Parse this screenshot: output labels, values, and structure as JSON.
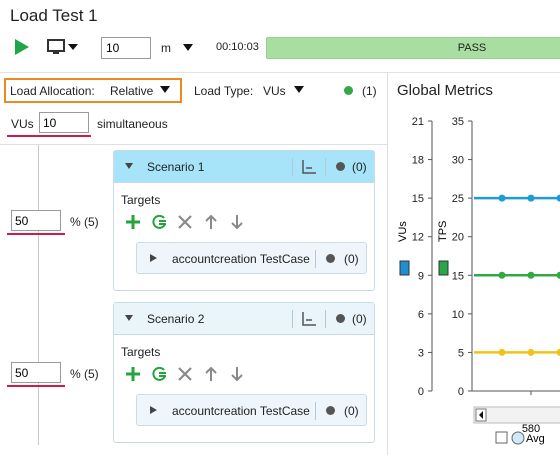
{
  "header": {
    "title": "Load Test 1",
    "duration_value": "10",
    "duration_unit": "m",
    "elapsed": "00:10:03",
    "status": "PASS",
    "status_color": "#a9dea3"
  },
  "allocation": {
    "label": "Load Allocation:",
    "value": "Relative",
    "load_type_label": "Load Type:",
    "load_type_value": "VUs",
    "status_count": "(1)",
    "status_color": "#33a844"
  },
  "vus": {
    "label": "VUs",
    "value": "10",
    "suffix": "simultaneous"
  },
  "scenarios": [
    {
      "name": "Scenario 1",
      "count": "(0)",
      "header_color": "#a7e4f9",
      "percent_value": "50",
      "percent_label": "% (5)",
      "targets_label": "Targets",
      "testcase": {
        "name": "accountcreation TestCase",
        "count": "(0)"
      }
    },
    {
      "name": "Scenario 2",
      "count": "(0)",
      "header_color": "#eaf5fb",
      "percent_value": "50",
      "percent_label": "% (5)",
      "targets_label": "Targets",
      "testcase": {
        "name": "accountcreation TestCase",
        "count": "(0)"
      }
    }
  ],
  "target_tools": [
    "add-icon",
    "reload-icon",
    "delete-icon",
    "arrow-up-icon",
    "arrow-down-icon"
  ],
  "metrics": {
    "title": "Global Metrics",
    "legend_avg": "Avg"
  },
  "chart_data": {
    "type": "line",
    "x_tick_labels": [
      "580"
    ],
    "axes": [
      {
        "name": "VUs",
        "ticks": [
          "0",
          "3",
          "6",
          "9",
          "12",
          "15",
          "18",
          "21"
        ],
        "ylim": [
          0,
          21
        ],
        "color": "#1f8fd4"
      },
      {
        "name": "TPS",
        "ticks": [
          "0",
          "5",
          "10",
          "15",
          "20",
          "25",
          "30",
          "35"
        ],
        "ylim": [
          0,
          35
        ],
        "color": "#2aa64a"
      }
    ],
    "series": [
      {
        "axis": "TPS",
        "color": "#1f9ad8",
        "values": [
          25,
          25,
          25,
          25
        ]
      },
      {
        "axis": "TPS",
        "color": "#33a844",
        "values": [
          15,
          15,
          15,
          15
        ]
      },
      {
        "axis": "TPS",
        "color": "#f2c21a",
        "values": [
          5,
          5,
          5,
          5
        ]
      }
    ]
  }
}
